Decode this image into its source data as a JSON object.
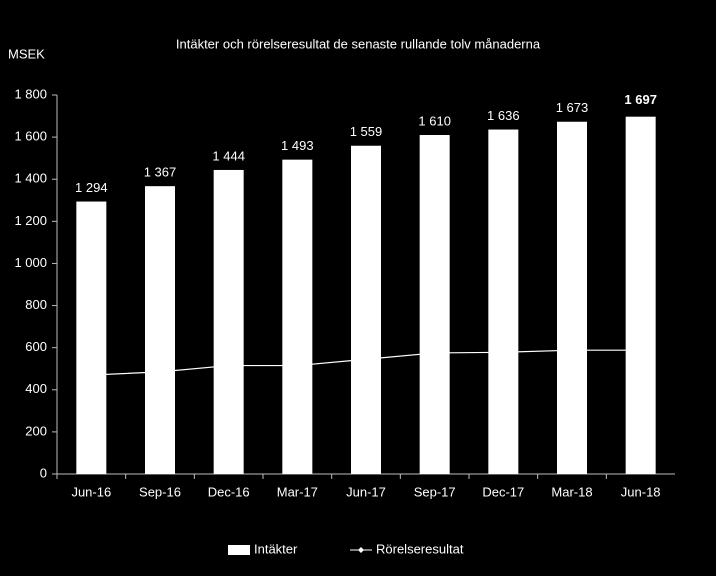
{
  "chart_data": {
    "type": "bar",
    "title": "Intäkter och rörelseresultat de senaste rullande tolv månaderna",
    "y_label": "MSEK",
    "categories": [
      "Jun-16",
      "Sep-16",
      "Dec-16",
      "Mar-17",
      "Jun-17",
      "Sep-17",
      "Dec-17",
      "Mar-18",
      "Jun-18"
    ],
    "series": [
      {
        "name": "Intäkter",
        "type": "bar",
        "color": "#ffffff",
        "values": [
          1294,
          1367,
          1444,
          1493,
          1559,
          1610,
          1636,
          1673,
          1697
        ],
        "value_labels": [
          "1 294",
          "1 367",
          "1 444",
          "1 493",
          "1 559",
          "1 610",
          "1 636",
          "1 673",
          "1 697"
        ]
      },
      {
        "name": "Rörelseresultat",
        "type": "line",
        "color": "#ffffff",
        "values": [
          470,
          485,
          515,
          515,
          545,
          575,
          578,
          588,
          588
        ]
      }
    ],
    "highlight_last_label": true,
    "ylim": [
      0,
      1800
    ],
    "yticks": [
      0,
      200,
      400,
      600,
      800,
      {
        "value": 1000,
        "label": "1 000"
      },
      {
        "value": 1200,
        "label": "1 200"
      },
      {
        "value": 1400,
        "label": "1 400"
      },
      {
        "value": 1600,
        "label": "1 600"
      },
      {
        "value": 1800,
        "label": "1 800"
      }
    ],
    "legend": "bottom"
  }
}
